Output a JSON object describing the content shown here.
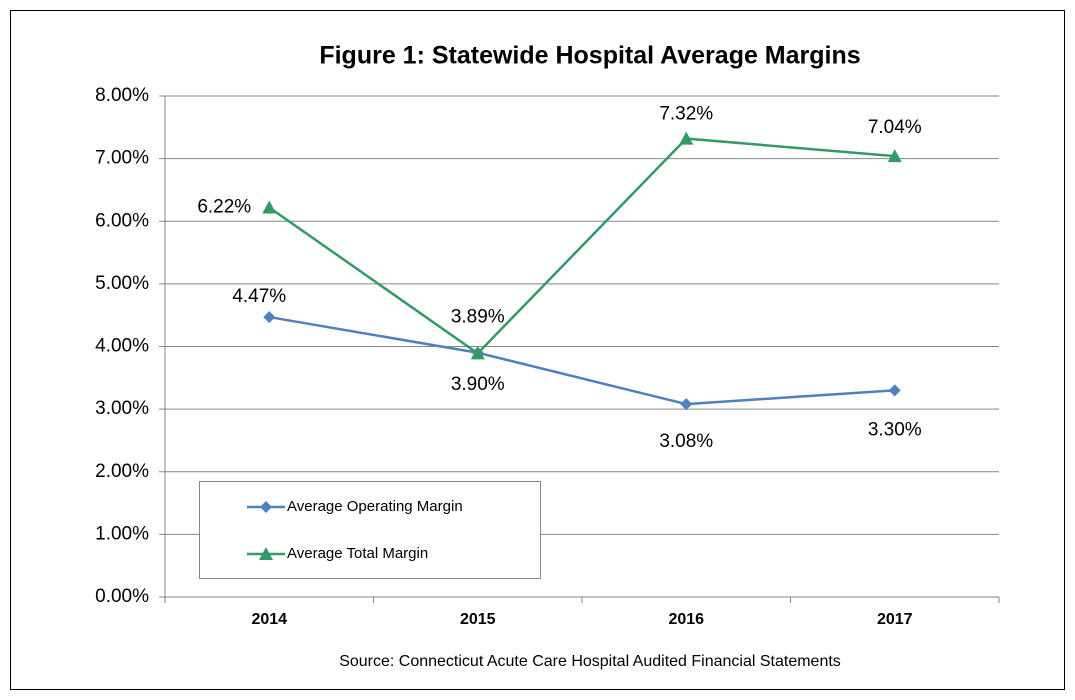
{
  "chart_data": {
    "type": "line",
    "title": "Figure 1: Statewide Hospital Average Margins",
    "source": "Source: Connecticut Acute Care Hospital Audited Financial Statements",
    "categories": [
      "2014",
      "2015",
      "2016",
      "2017"
    ],
    "series": [
      {
        "name": "Average Operating Margin",
        "color": "#4f81bd",
        "marker": "diamond",
        "values": [
          4.47,
          3.9,
          3.08,
          3.3
        ],
        "value_labels": [
          "4.47%",
          "3.90%",
          "3.08%",
          "3.30%"
        ]
      },
      {
        "name": "Average Total Margin",
        "color": "#339966",
        "marker": "triangle",
        "values": [
          6.22,
          3.89,
          7.32,
          7.04
        ],
        "value_labels": [
          "6.22%",
          "3.89%",
          "7.32%",
          "7.04%"
        ]
      }
    ],
    "ylim": [
      0,
      8
    ],
    "yticks": [
      {
        "value": 0,
        "label": "0.00%"
      },
      {
        "value": 1,
        "label": "1.00%"
      },
      {
        "value": 2,
        "label": "2.00%"
      },
      {
        "value": 3,
        "label": "3.00%"
      },
      {
        "value": 4,
        "label": "4.00%"
      },
      {
        "value": 5,
        "label": "5.00%"
      },
      {
        "value": 6,
        "label": "6.00%"
      },
      {
        "value": 7,
        "label": "7.00%"
      },
      {
        "value": 8,
        "label": "8.00%"
      }
    ],
    "grid": true
  }
}
